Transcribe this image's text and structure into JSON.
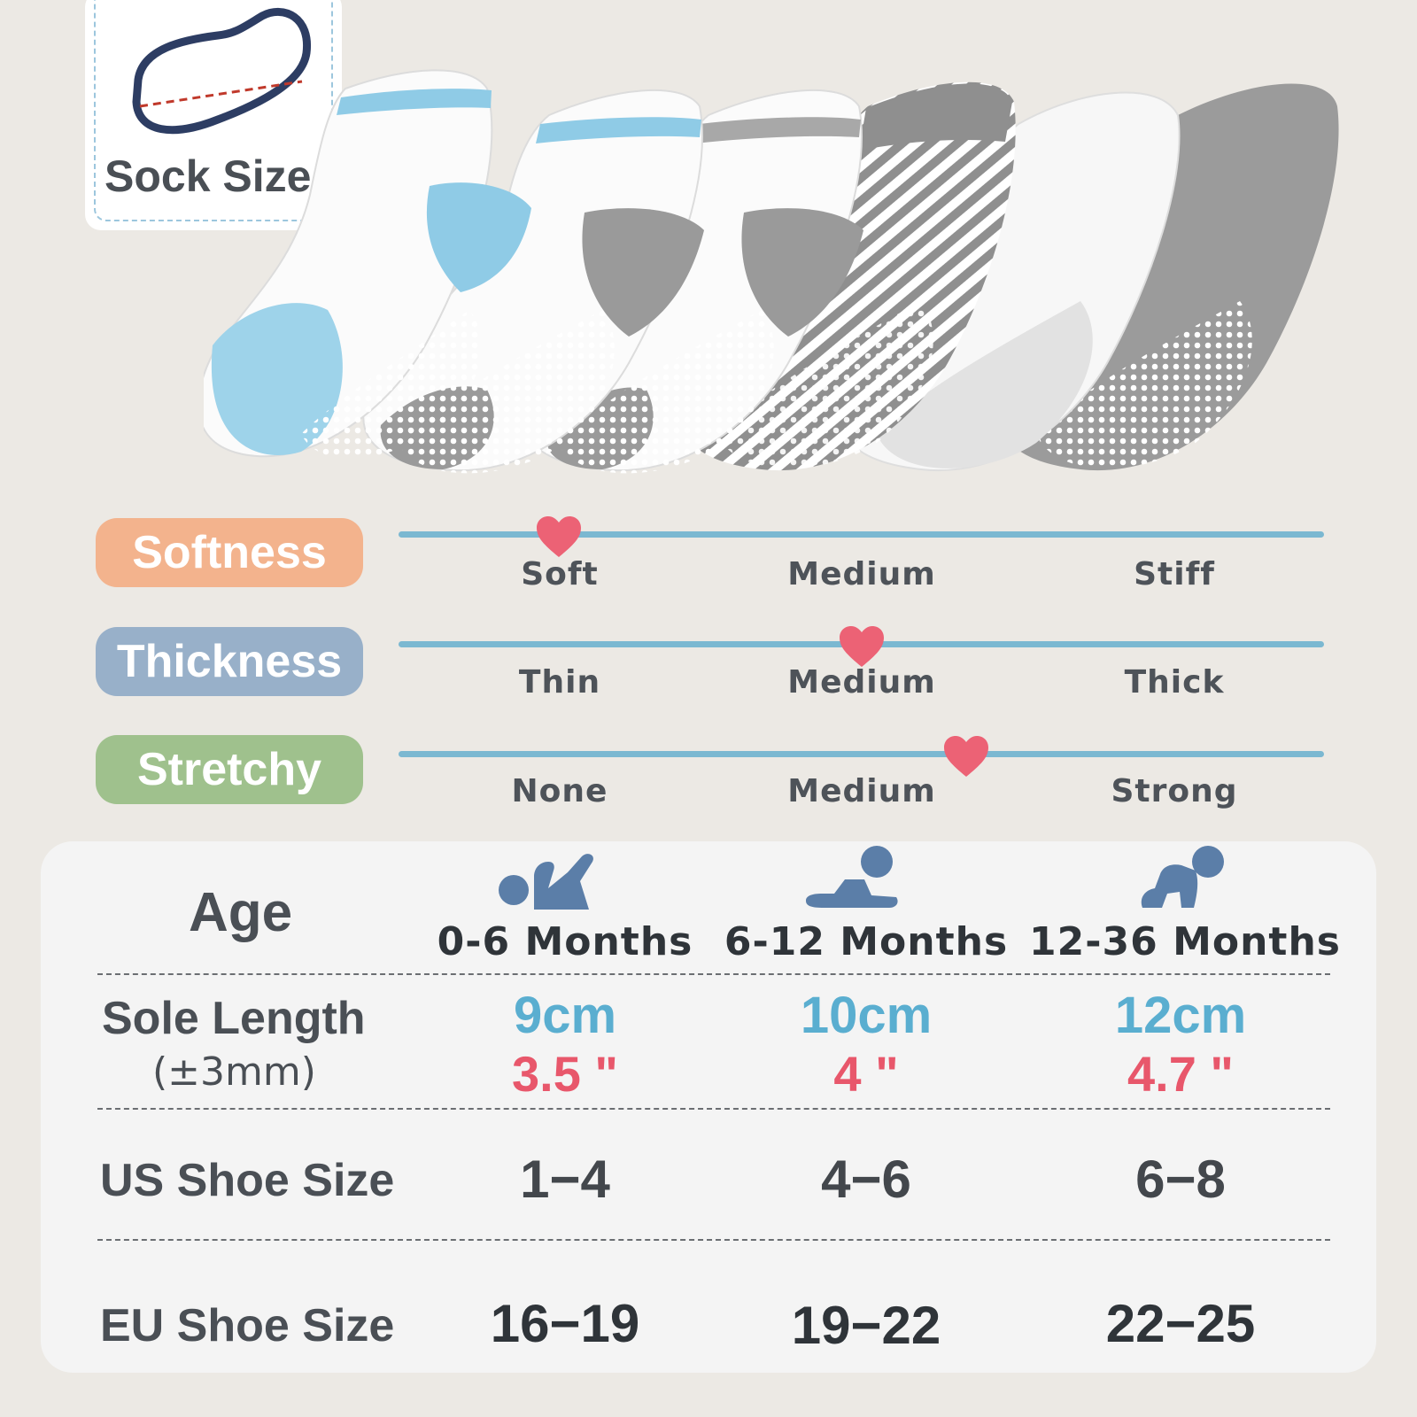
{
  "sock_card": {
    "label": "Sock Size"
  },
  "attributes": [
    {
      "label": "Softness",
      "color": "#f3b38d",
      "options": [
        "Soft",
        "Medium",
        "Stiff"
      ],
      "selected": "Soft"
    },
    {
      "label": "Thickness",
      "color": "#98b0c9",
      "options": [
        "Thin",
        "Medium",
        "Thick"
      ],
      "selected": "Medium"
    },
    {
      "label": "Stretchy",
      "color": "#9fc18d",
      "options": [
        "None",
        "Medium",
        "Strong"
      ],
      "selected": "between Medium and Strong"
    }
  ],
  "size_table": {
    "age_label": "Age",
    "columns": [
      "0-6 Months",
      "6-12 Months",
      "12-36 Months"
    ],
    "sole_length": {
      "label": "Sole Length",
      "sublabel": "(±3mm)",
      "cm": [
        "9cm",
        "10cm",
        "12cm"
      ],
      "inches": [
        "3.5 \"",
        "4 \"",
        "4.7 \""
      ]
    },
    "us_shoe_size": {
      "label": "US Shoe Size",
      "values": [
        "1−4",
        "4−6",
        "6−8"
      ]
    },
    "eu_shoe_size": {
      "label": "EU Shoe Size",
      "values": [
        "16−19",
        "19−22",
        "22−25"
      ]
    }
  },
  "colors": {
    "background": "#ece9e4",
    "scale_line": "#7bb8d1",
    "heart": "#ec6275",
    "cm_blue": "#5aaed0",
    "inch_red": "#e8576b",
    "icon_blue": "#5b7ea8"
  }
}
